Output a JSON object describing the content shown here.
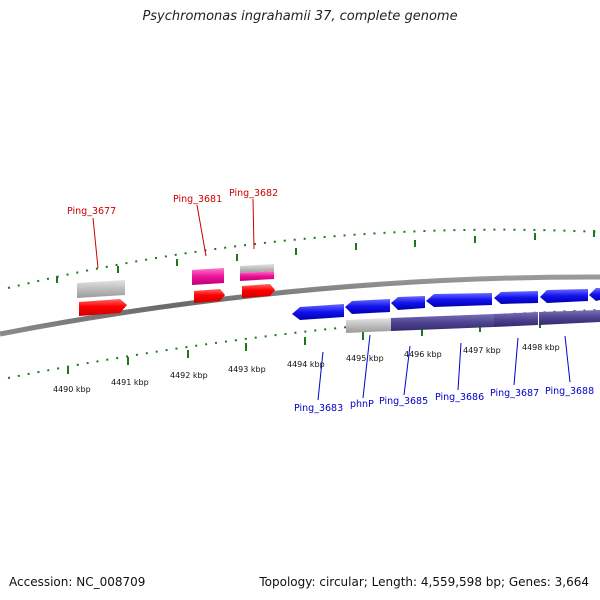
{
  "title": "Psychromonas ingrahamii 37, complete genome",
  "accession": "Accession: NC_008709",
  "summary": "Topology: circular; Length: 4,559,598 bp; Genes: 3,664",
  "colors": {
    "forward_gene": "#ff0000",
    "forward_gene_alt": "#ee1199",
    "reverse_gene": "#1111ee",
    "feature_grey": "#b8b8b8",
    "feature_purple": "#4d4390",
    "tick": "#1a7a1a",
    "label_top": "#cc0000",
    "label_bottom": "#0000cc"
  },
  "scale_ticks": [
    "4490 kbp",
    "4491 kbp",
    "4492 kbp",
    "4493 kbp",
    "4494 kbp",
    "4495 kbp",
    "4496 kbp",
    "4497 kbp",
    "4498 kbp"
  ],
  "top_labels": [
    "Ping_3677",
    "Ping_3681",
    "Ping_3682"
  ],
  "bottom_labels": [
    "Ping_3683",
    "phnP",
    "Ping_3685",
    "Ping_3686",
    "Ping_3687",
    "Ping_3688"
  ]
}
